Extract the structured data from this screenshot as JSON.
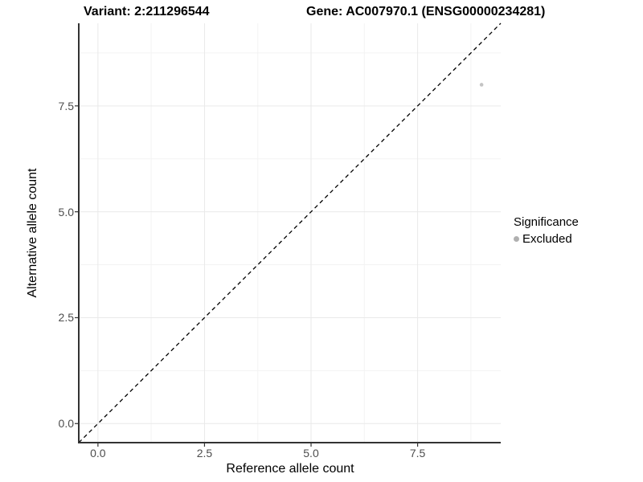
{
  "chart_data": {
    "type": "scatter",
    "title_left": "Variant: 2:211296544",
    "title_right": "Gene: AC007970.1 (ENSG00000234281)",
    "xlabel": "Reference allele count",
    "ylabel": "Alternative allele count",
    "xlim": [
      -0.45,
      9.45
    ],
    "ylim": [
      -0.45,
      9.45
    ],
    "x_ticks": [
      0.0,
      2.5,
      5.0,
      7.5
    ],
    "y_ticks": [
      0.0,
      2.5,
      5.0,
      7.5
    ],
    "minor_ticks": [
      1.25,
      3.75,
      6.25,
      8.75
    ],
    "grid": {
      "major": true,
      "minor": true
    },
    "reference_line": {
      "type": "identity",
      "style": "dashed",
      "color": "#000000"
    },
    "points": [
      {
        "x": 9,
        "y": 8,
        "series": "Excluded",
        "color": "#c4c4c4",
        "radius": 2.3
      }
    ],
    "legend": {
      "title": "Significance",
      "position": "right",
      "entries": [
        {
          "label": "Excluded",
          "color": "#b0b0b0"
        }
      ]
    },
    "colors": {
      "grid_major": "#e9e9e9",
      "grid_minor": "#f3f3f3",
      "axis_line": "#333333",
      "tick_mark": "#333333",
      "tick_text": "#4d4d4d"
    }
  }
}
